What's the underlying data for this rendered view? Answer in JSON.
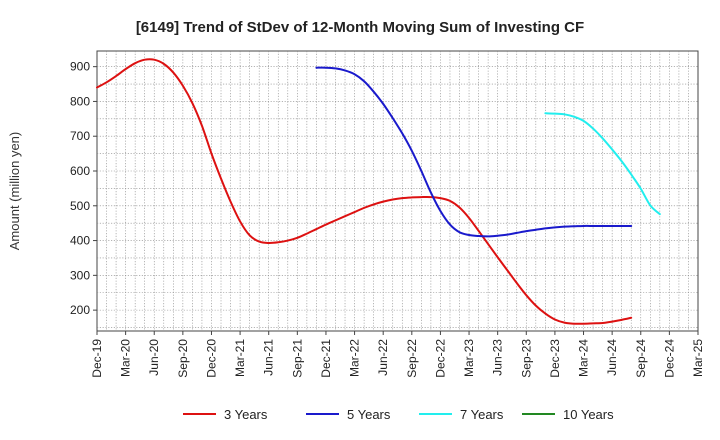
{
  "chart_data": {
    "type": "line",
    "title": "[6149]  Trend of StDev of 12-Month Moving Sum of Investing CF",
    "ylabel": "Amount (million yen)",
    "xlabel": "",
    "ylim": [
      140,
      945
    ],
    "yticks": [
      200,
      300,
      400,
      500,
      600,
      700,
      800,
      900
    ],
    "x_tick_labels": [
      "Dec-19",
      "Mar-20",
      "Jun-20",
      "Sep-20",
      "Dec-20",
      "Mar-21",
      "Jun-21",
      "Sep-21",
      "Dec-21",
      "Mar-22",
      "Jun-22",
      "Sep-22",
      "Dec-22",
      "Mar-23",
      "Jun-23",
      "Sep-23",
      "Dec-23",
      "Mar-24",
      "Jun-24",
      "Sep-24",
      "Dec-24",
      "Mar-25"
    ],
    "grid": true,
    "legend_position": "bottom",
    "series": [
      {
        "name": "3 Years",
        "color": "#dd1111",
        "points": [
          [
            "Dec-19",
            840
          ],
          [
            "Jan-20",
            855
          ],
          [
            "Feb-20",
            873
          ],
          [
            "Mar-20",
            893
          ],
          [
            "Apr-20",
            910
          ],
          [
            "May-20",
            920
          ],
          [
            "Jun-20",
            920
          ],
          [
            "Jul-20",
            908
          ],
          [
            "Aug-20",
            883
          ],
          [
            "Sep-20",
            845
          ],
          [
            "Oct-20",
            795
          ],
          [
            "Nov-20",
            730
          ],
          [
            "Dec-20",
            650
          ],
          [
            "Jan-21",
            578
          ],
          [
            "Feb-21",
            512
          ],
          [
            "Mar-21",
            455
          ],
          [
            "Apr-21",
            415
          ],
          [
            "May-21",
            397
          ],
          [
            "Jun-21",
            393
          ],
          [
            "Jul-21",
            395
          ],
          [
            "Aug-21",
            400
          ],
          [
            "Sep-21",
            408
          ],
          [
            "Oct-21",
            420
          ],
          [
            "Nov-21",
            433
          ],
          [
            "Dec-21",
            446
          ],
          [
            "Jan-22",
            458
          ],
          [
            "Feb-22",
            470
          ],
          [
            "Mar-22",
            482
          ],
          [
            "Apr-22",
            494
          ],
          [
            "May-22",
            504
          ],
          [
            "Jun-22",
            512
          ],
          [
            "Jul-22",
            518
          ],
          [
            "Aug-22",
            522
          ],
          [
            "Sep-22",
            524
          ],
          [
            "Oct-22",
            525
          ],
          [
            "Nov-22",
            525
          ],
          [
            "Dec-22",
            522
          ],
          [
            "Jan-23",
            514
          ],
          [
            "Feb-23",
            495
          ],
          [
            "Mar-23",
            465
          ],
          [
            "Apr-23",
            428
          ],
          [
            "May-23",
            390
          ],
          [
            "Jun-23",
            352
          ],
          [
            "Jul-23",
            315
          ],
          [
            "Aug-23",
            278
          ],
          [
            "Sep-23",
            243
          ],
          [
            "Oct-23",
            213
          ],
          [
            "Nov-23",
            190
          ],
          [
            "Dec-23",
            173
          ],
          [
            "Jan-24",
            164
          ],
          [
            "Feb-24",
            161
          ],
          [
            "Mar-24",
            161
          ],
          [
            "Apr-24",
            162
          ],
          [
            "May-24",
            163
          ],
          [
            "Jun-24",
            167
          ],
          [
            "Jul-24",
            172
          ],
          [
            "Aug-24",
            178
          ]
        ]
      },
      {
        "name": "5 Years",
        "color": "#1a1acc",
        "points": [
          [
            "Nov-21",
            897
          ],
          [
            "Dec-21",
            897
          ],
          [
            "Jan-22",
            895
          ],
          [
            "Feb-22",
            889
          ],
          [
            "Mar-22",
            878
          ],
          [
            "Apr-22",
            858
          ],
          [
            "May-22",
            828
          ],
          [
            "Jun-22",
            793
          ],
          [
            "Jul-22",
            752
          ],
          [
            "Aug-22",
            708
          ],
          [
            "Sep-22",
            658
          ],
          [
            "Oct-22",
            600
          ],
          [
            "Nov-22",
            538
          ],
          [
            "Dec-22",
            485
          ],
          [
            "Jan-23",
            446
          ],
          [
            "Feb-23",
            424
          ],
          [
            "Mar-23",
            416
          ],
          [
            "Apr-23",
            413
          ],
          [
            "May-23",
            412
          ],
          [
            "Jun-23",
            414
          ],
          [
            "Jul-23",
            417
          ],
          [
            "Aug-23",
            422
          ],
          [
            "Sep-23",
            427
          ],
          [
            "Oct-23",
            431
          ],
          [
            "Nov-23",
            435
          ],
          [
            "Dec-23",
            438
          ],
          [
            "Jan-24",
            440
          ],
          [
            "Feb-24",
            441
          ],
          [
            "Mar-24",
            442
          ],
          [
            "Apr-24",
            442
          ],
          [
            "May-24",
            442
          ],
          [
            "Jun-24",
            442
          ],
          [
            "Jul-24",
            442
          ],
          [
            "Aug-24",
            442
          ]
        ]
      },
      {
        "name": "7 Years",
        "color": "#22eeee",
        "points": [
          [
            "Nov-23",
            766
          ],
          [
            "Dec-23",
            765
          ],
          [
            "Jan-24",
            763
          ],
          [
            "Feb-24",
            756
          ],
          [
            "Mar-24",
            744
          ],
          [
            "Apr-24",
            722
          ],
          [
            "May-24",
            694
          ],
          [
            "Jun-24",
            662
          ],
          [
            "Jul-24",
            628
          ],
          [
            "Aug-24",
            590
          ],
          [
            "Sep-24",
            549
          ],
          [
            "Oct-24",
            501
          ],
          [
            "Nov-24",
            476
          ]
        ]
      },
      {
        "name": "10 Years",
        "color": "#228822",
        "points": []
      }
    ]
  }
}
